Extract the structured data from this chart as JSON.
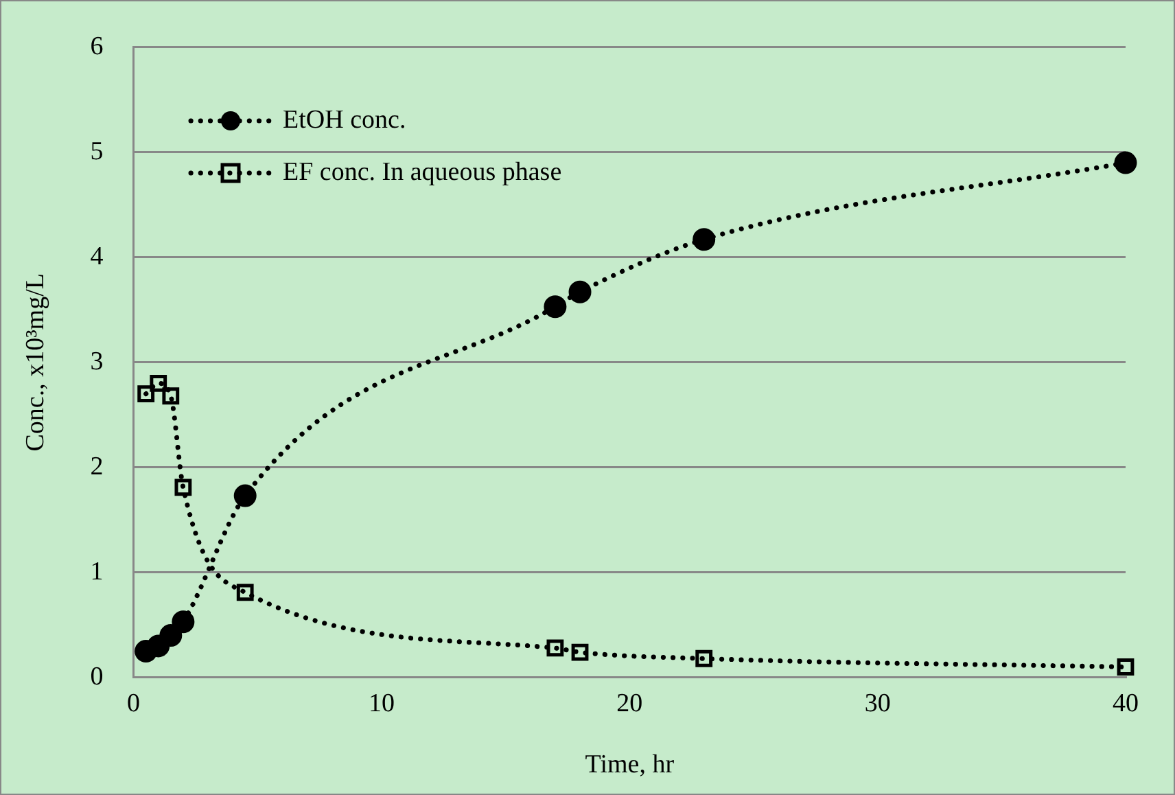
{
  "chart_data": {
    "type": "line",
    "xlabel": "Time, hr",
    "ylabel": "Conc., x10³mg/L",
    "xlim": [
      0,
      40
    ],
    "xticks": [
      0,
      10,
      20,
      30,
      40
    ],
    "ylim": [
      0,
      6
    ],
    "yticks": [
      0,
      1,
      2,
      3,
      4,
      5,
      6
    ],
    "grid": "y",
    "legend": "top left",
    "line_style": "dotted",
    "series": [
      {
        "name": "EtOH conc.",
        "color": "#000000",
        "marker": "circle",
        "x": [
          0.5,
          1,
          1.5,
          2,
          4.5,
          17,
          18,
          23,
          40
        ],
        "values": [
          0.25,
          0.3,
          0.4,
          0.53,
          1.73,
          3.53,
          3.67,
          4.17,
          4.9
        ]
      },
      {
        "name": "EF conc. In aqueous phase",
        "color": "#000000",
        "marker": "square",
        "x": [
          0.5,
          1,
          1.5,
          2,
          4.5,
          17,
          18,
          23,
          40
        ],
        "values": [
          2.7,
          2.8,
          2.68,
          1.81,
          0.81,
          0.28,
          0.24,
          0.18,
          0.1
        ]
      }
    ]
  }
}
